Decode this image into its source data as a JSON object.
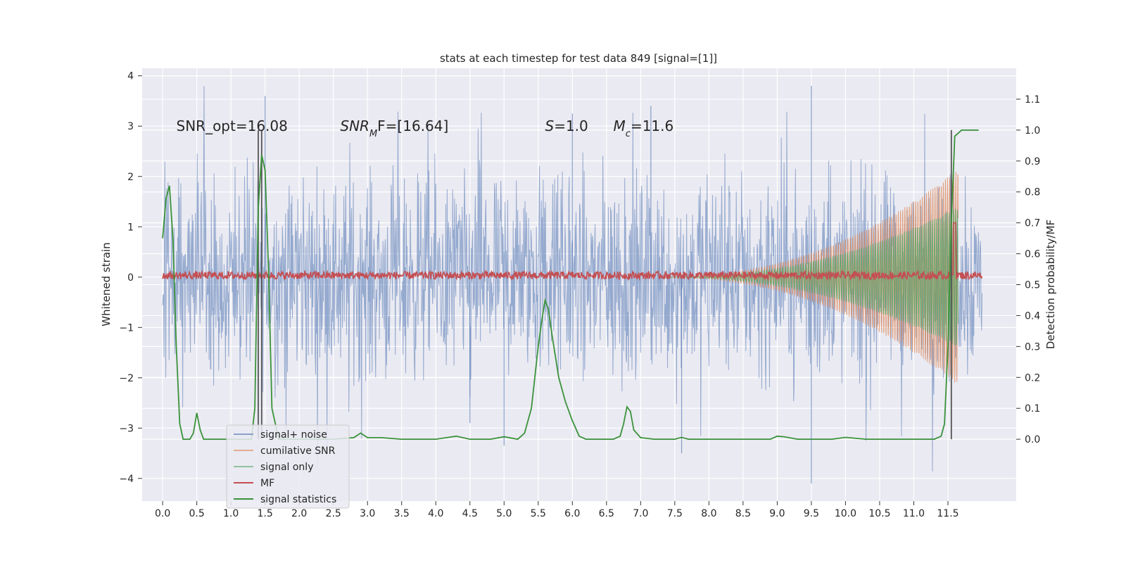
{
  "chart_data": {
    "type": "line",
    "title": "stats at each timestep for test data 849 [signal=[1]]",
    "ylabel": "Whitened strain",
    "y2label": "Detection probability/MF",
    "xlim": [
      -0.3,
      12.5
    ],
    "ylim": [
      -4.45,
      4.15
    ],
    "y2lim": [
      -0.2,
      1.2
    ],
    "xticks": [
      0.0,
      0.5,
      1.0,
      1.5,
      2.0,
      2.5,
      3.0,
      3.5,
      4.0,
      4.5,
      5.0,
      5.5,
      6.0,
      6.5,
      7.0,
      7.5,
      8.0,
      8.5,
      9.0,
      9.5,
      10.0,
      10.5,
      11.0,
      11.5
    ],
    "xtick_labels": [
      "0.0",
      "0.5",
      "1.0",
      "1.5",
      "2.0",
      "2.5",
      "3.0",
      "3.5",
      "4.0",
      "4.5",
      "5.0",
      "5.5",
      "6.0",
      "6.5",
      "7.0",
      "7.5",
      "8.0",
      "8.5",
      "9.0",
      "9.5",
      "10.0",
      "10.5",
      "11.0",
      "11.5"
    ],
    "yticks": [
      -4,
      -3,
      -2,
      -1,
      0,
      1,
      2,
      3,
      4
    ],
    "ytick_labels": [
      "−4",
      "−3",
      "−2",
      "−1",
      "0",
      "1",
      "2",
      "3",
      "4"
    ],
    "y2ticks": [
      0.0,
      0.1,
      0.2,
      0.3,
      0.4,
      0.5,
      0.6,
      0.7,
      0.8,
      0.9,
      1.0,
      1.1
    ],
    "y2tick_labels": [
      "0.0",
      "0.1",
      "0.2",
      "0.3",
      "0.4",
      "0.5",
      "0.6",
      "0.7",
      "0.8",
      "0.9",
      "1.0",
      "1.1"
    ],
    "grid": true,
    "legend_position": "lower-left",
    "series": [
      {
        "name": "signal+ noise",
        "color": "#4c72b0",
        "axis": "left",
        "kind": "noise band",
        "x_range": [
          0.0,
          12.0
        ],
        "envelope": 1.7,
        "min": -4.1,
        "max": 3.8
      },
      {
        "name": "cumilative SNR",
        "color": "#dd8452",
        "axis": "left",
        "kind": "chirp envelope",
        "x_range": [
          7.3,
          11.65
        ],
        "amplitude_start": 0.0,
        "amplitude_end": 2.15
      },
      {
        "name": "signal only",
        "color": "#55a868",
        "axis": "left",
        "kind": "chirp envelope",
        "x_range": [
          7.3,
          11.65
        ],
        "amplitude_start": 0.0,
        "amplitude_end": 1.4
      },
      {
        "name": "MF",
        "color": "#c44e52",
        "axis": "right",
        "kind": "matched filter",
        "baseline": 0.53,
        "spike_x": 11.6,
        "spike_value": 0.7
      },
      {
        "name": "signal statistics",
        "color": "#3a923a",
        "axis": "right",
        "x": [
          0.0,
          0.05,
          0.1,
          0.15,
          0.2,
          0.25,
          0.3,
          0.4,
          0.45,
          0.5,
          0.55,
          0.6,
          0.7,
          0.8,
          1.0,
          1.2,
          1.3,
          1.35,
          1.4,
          1.45,
          1.5,
          1.55,
          1.6,
          1.7,
          1.8,
          2.0,
          2.5,
          2.8,
          2.9,
          3.0,
          3.2,
          3.5,
          4.0,
          4.3,
          4.5,
          4.8,
          5.0,
          5.2,
          5.3,
          5.4,
          5.5,
          5.55,
          5.6,
          5.65,
          5.7,
          5.8,
          5.9,
          6.0,
          6.1,
          6.2,
          6.4,
          6.6,
          6.7,
          6.75,
          6.8,
          6.85,
          6.9,
          7.0,
          7.2,
          7.5,
          7.6,
          7.7,
          8.0,
          8.5,
          8.9,
          9.0,
          9.1,
          9.3,
          9.5,
          9.8,
          10.0,
          10.3,
          10.6,
          11.0,
          11.3,
          11.4,
          11.45,
          11.5,
          11.55,
          11.6,
          11.65,
          11.7,
          11.75,
          11.8,
          11.9,
          11.95
        ],
        "values": [
          0.65,
          0.78,
          0.82,
          0.65,
          0.3,
          0.05,
          0.0,
          0.0,
          0.02,
          0.085,
          0.03,
          0.0,
          0.0,
          0.0,
          0.0,
          0.0,
          0.0,
          0.1,
          0.75,
          0.92,
          0.87,
          0.55,
          0.1,
          0.0,
          0.0,
          0.0,
          0.0,
          0.005,
          0.02,
          0.005,
          0.005,
          0.0,
          0.0,
          0.01,
          0.0,
          0.0,
          0.008,
          0.0,
          0.02,
          0.1,
          0.3,
          0.38,
          0.45,
          0.42,
          0.34,
          0.2,
          0.12,
          0.06,
          0.01,
          0.0,
          0.0,
          0.0,
          0.01,
          0.05,
          0.105,
          0.09,
          0.03,
          0.005,
          0.0,
          0.0,
          0.006,
          0.0,
          0.0,
          0.0,
          0.0,
          0.01,
          0.008,
          0.0,
          0.0,
          0.0,
          0.006,
          0.0,
          0.0,
          0.0,
          0.0,
          0.01,
          0.05,
          0.3,
          0.7,
          0.98,
          0.99,
          1.0,
          1.0,
          1.0,
          1.0,
          1.0
        ]
      },
      {
        "name": "",
        "color": "#555555",
        "axis": "right",
        "kind": "markers",
        "x": [
          1.4,
          1.45,
          11.55
        ],
        "range": [
          0.0,
          1.0
        ]
      }
    ],
    "annotations": [
      {
        "x": 0.2,
        "y": 3.0,
        "plain": "SNR_opt=16.08"
      },
      {
        "x": 2.6,
        "y": 3.0,
        "sym": "SNR",
        "sub": "M",
        "rest": "F=[16.64]"
      },
      {
        "x": 5.6,
        "y": 3.0,
        "sym": "S",
        "sub": "",
        "rest": "=1.0"
      },
      {
        "x": 6.6,
        "y": 3.0,
        "sym": "M",
        "sub": "c",
        "rest": "=11.6"
      }
    ]
  }
}
